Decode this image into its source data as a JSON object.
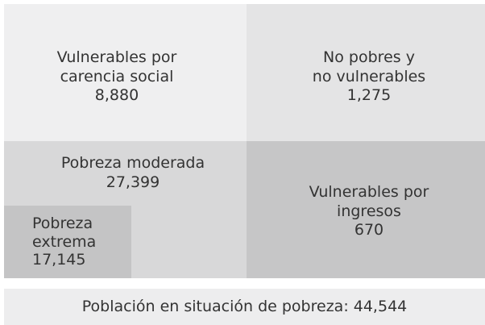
{
  "cells": [
    {
      "label": [
        "Vulnerables por",
        "carencia social"
      ],
      "value": "8,880"
    },
    {
      "label": [
        "No pobres y",
        "no vulnerables"
      ],
      "value": "1,275"
    },
    {
      "label": [
        "Pobreza moderada"
      ],
      "value": "27,399"
    },
    {
      "label": [
        "Pobreza",
        "extrema"
      ],
      "value": "17,145"
    },
    {
      "label": [
        "Vulnerables por",
        "ingresos"
      ],
      "value": "670"
    }
  ],
  "footer": "Población en situación de pobreza: 44,544"
}
